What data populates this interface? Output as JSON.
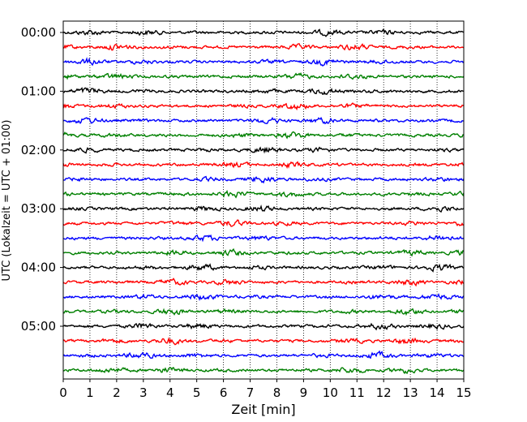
{
  "chart_data": {
    "type": "line",
    "chart_kind": "helicorder seismogram trace plot",
    "xlabel": "Zeit  [min]",
    "ylabel": "UTC (Lokalzeit = UTC + 01:00)",
    "xlim": [
      0,
      15
    ],
    "x_ticks": [
      "0",
      "1",
      "2",
      "3",
      "4",
      "5",
      "6",
      "7",
      "8",
      "9",
      "10",
      "11",
      "12",
      "13",
      "14",
      "15"
    ],
    "y_tick_labels": [
      "00:00",
      "01:00",
      "02:00",
      "03:00",
      "04:00",
      "05:00"
    ],
    "y_ticks_at_trace_index": [
      0,
      4,
      8,
      12,
      16,
      20
    ],
    "minutes_per_trace": 15,
    "trace_count": 24,
    "trace_start_times_utc": [
      "00:00",
      "00:15",
      "00:30",
      "00:45",
      "01:00",
      "01:15",
      "01:30",
      "01:45",
      "02:00",
      "02:15",
      "02:30",
      "02:45",
      "03:00",
      "03:15",
      "03:30",
      "03:45",
      "04:00",
      "04:15",
      "04:30",
      "04:45",
      "05:00",
      "05:15",
      "05:30",
      "05:45"
    ],
    "trace_color_cycle": [
      "#000000",
      "#ff0000",
      "#0000ff",
      "#008000"
    ],
    "vertical_grid": "dotted, every 1 min",
    "waveform": "continuous low-amplitude seismic noise, no major events"
  }
}
